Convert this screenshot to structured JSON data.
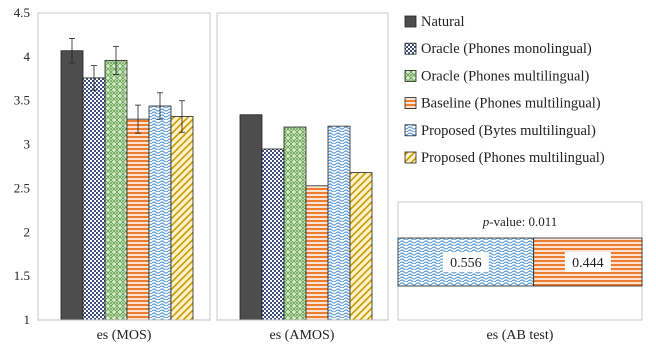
{
  "chart_data": [
    {
      "type": "bar",
      "xlabel": "es (MOS)",
      "ylim": [
        1,
        4.5
      ],
      "yticks": [
        "1",
        "1.5",
        "2",
        "2.5",
        "3",
        "3.5",
        "4",
        "4.5"
      ],
      "grid": false,
      "error_bars": true,
      "series": [
        {
          "name": "Natural",
          "values": [
            4.07
          ],
          "err": [
            0.14
          ]
        },
        {
          "name": "Oracle (Phones monolingual)",
          "values": [
            3.76
          ],
          "err": [
            0.14
          ]
        },
        {
          "name": "Oracle (Phones multilingual)",
          "values": [
            3.96
          ],
          "err": [
            0.16
          ]
        },
        {
          "name": "Baseline (Phones multilingual)",
          "values": [
            3.29
          ],
          "err": [
            0.16
          ]
        },
        {
          "name": "Proposed (Bytes multilingual)",
          "values": [
            3.44
          ],
          "err": [
            0.15
          ]
        },
        {
          "name": "Proposed (Phones multilingual)",
          "values": [
            3.32
          ],
          "err": [
            0.18
          ]
        }
      ]
    },
    {
      "type": "bar",
      "xlabel": "es (AMOS)",
      "ylim": [
        1,
        4.5
      ],
      "grid": false,
      "series": [
        {
          "name": "Natural",
          "values": [
            3.34
          ]
        },
        {
          "name": "Oracle (Phones monolingual)",
          "values": [
            2.95
          ]
        },
        {
          "name": "Oracle (Phones multilingual)",
          "values": [
            3.2
          ]
        },
        {
          "name": "Baseline (Phones multilingual)",
          "values": [
            2.53
          ]
        },
        {
          "name": "Proposed (Bytes multilingual)",
          "values": [
            3.21
          ]
        },
        {
          "name": "Proposed (Phones multilingual)",
          "values": [
            2.68
          ]
        }
      ]
    },
    {
      "type": "bar",
      "orientation": "horizontal-stacked",
      "xlabel": "es (AB test)",
      "annotation_italic": "p",
      "annotation": "-value: 0.011",
      "series": [
        {
          "name": "Proposed (Bytes multilingual)",
          "value": 0.556,
          "label": "0.556"
        },
        {
          "name": "Baseline (Phones multilingual)",
          "value": 0.444,
          "label": "0.444"
        }
      ]
    }
  ],
  "legend": {
    "placement": "top-right",
    "items": [
      {
        "label": "Natural",
        "pattern": "solid-dark",
        "color": "#4d4d4d"
      },
      {
        "label": "Oracle (Phones monolingual)",
        "pattern": "dots",
        "color": "#4a6fa5"
      },
      {
        "label": "Oracle (Phones multilingual)",
        "pattern": "green-check",
        "color": "#70ad47"
      },
      {
        "label": "Baseline (Phones multilingual)",
        "pattern": "orange-stripes",
        "color": "#ed7d31"
      },
      {
        "label": "Proposed (Bytes multilingual)",
        "pattern": "blue-waves",
        "color": "#5b9bd5"
      },
      {
        "label": "Proposed (Phones multilingual)",
        "pattern": "yellow-diagonal",
        "color": "#ffc000"
      }
    ]
  }
}
